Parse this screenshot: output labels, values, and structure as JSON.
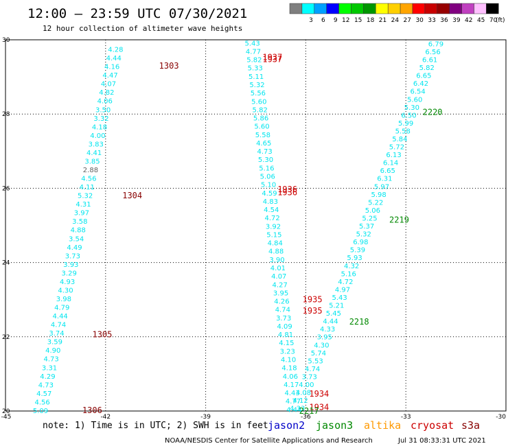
{
  "header": {
    "title": "12:00 – 23:59 UTC 07/30/2021",
    "subtitle": "12 hour collection of altimeter wave heights"
  },
  "color_scale": {
    "unit": "(ft)",
    "boxes": [
      {
        "label": "",
        "color": "#7f7f7f"
      },
      {
        "label": "3",
        "color": "#00ffff"
      },
      {
        "label": "6",
        "color": "#00a0ff"
      },
      {
        "label": "9",
        "color": "#0000ff"
      },
      {
        "label": "12",
        "color": "#00ff00"
      },
      {
        "label": "15",
        "color": "#00c800"
      },
      {
        "label": "18",
        "color": "#009600"
      },
      {
        "label": "21",
        "color": "#ffff00"
      },
      {
        "label": "24",
        "color": "#ffd000"
      },
      {
        "label": "27",
        "color": "#ffa500"
      },
      {
        "label": "30",
        "color": "#ff0000"
      },
      {
        "label": "33",
        "color": "#c80000"
      },
      {
        "label": "36",
        "color": "#960000"
      },
      {
        "label": "39",
        "color": "#800080"
      },
      {
        "label": "42",
        "color": "#c040c0"
      },
      {
        "label": "45",
        "color": "#ffc0ff"
      },
      {
        "label": "70",
        "color": "#000000"
      }
    ]
  },
  "chart_data": {
    "type": "scatter",
    "xlim": [
      -45,
      -30
    ],
    "ylim": [
      20,
      30
    ],
    "x_ticks": [
      "-45",
      "-42",
      "-39",
      "-36",
      "-33",
      "-30"
    ],
    "y_ticks": [
      "20",
      "22",
      "24",
      "26",
      "28",
      "30"
    ],
    "grid": true,
    "colors": {
      "swh": "#00e5ee",
      "swh_dark": "#606060",
      "jason2": "#0000c8",
      "jason3": "#008800",
      "altika": "#ff9900",
      "cryosat": "#cc0000",
      "s3a": "#880000"
    },
    "tracks": [
      {
        "name": "s3a",
        "start": [
          -43.95,
          20.02
        ],
        "end": [
          -41.7,
          29.75
        ],
        "values": [
          "5.09",
          "4.56",
          "4.57",
          "4.73",
          "4.29",
          "3.31",
          "4.73",
          "4.90",
          "3.59",
          "3.74",
          "4.74",
          "4.44",
          "4.79",
          "3.98",
          "4.30",
          "4.93",
          "3.29",
          "3.93",
          "3.73",
          "4.49",
          "3.54",
          "4.88",
          "3.58",
          "3.97",
          "4.31",
          "5.32",
          "4.11",
          "4.56",
          "2.88",
          "3.85",
          "4.41",
          "3.83",
          "4.00",
          "4.18",
          "3.32",
          "3.50",
          "4.06",
          "4.82",
          "4.07",
          "4.47",
          "4.16",
          "4.44",
          "4.28"
        ],
        "dark": [
          28
        ]
      },
      {
        "name": "cryosat",
        "start": [
          -36.35,
          20.05
        ],
        "end": [
          -37.6,
          29.92
        ],
        "values": [
          "4.44",
          "4.77",
          "4.43",
          "4.17",
          "4.06",
          "4.18",
          "4.10",
          "3.23",
          "4.15",
          "4.81",
          "4.09",
          "3.73",
          "4.74",
          "4.26",
          "3.95",
          "4.27",
          "4.07",
          "4.01",
          "3.90",
          "4.88",
          "4.84",
          "5.15",
          "3.92",
          "4.72",
          "4.54",
          "4.83",
          "4.59",
          "5.10",
          "5.06",
          "5.16",
          "5.30",
          "4.73",
          "4.65",
          "5.58",
          "5.60",
          "5.86",
          "5.82",
          "5.60",
          "5.56",
          "5.32",
          "5.11",
          "5.33",
          "5.82",
          "4.77",
          "5.43"
        ]
      },
      {
        "name": "jason3",
        "start": [
          -36.25,
          20.08
        ],
        "end": [
          -32.1,
          29.9
        ],
        "values": [
          "4.33",
          "4.12",
          "4.08",
          "4.00",
          "3.73",
          "4.74",
          "5.53",
          "5.74",
          "4.30",
          "3.95",
          "4.33",
          "4.44",
          "5.45",
          "5.21",
          "5.43",
          "4.97",
          "4.72",
          "5.16",
          "4.32",
          "5.93",
          "5.39",
          "6.98",
          "5.32",
          "5.37",
          "5.25",
          "5.06",
          "5.22",
          "5.98",
          "5.97",
          "6.31",
          "6.65",
          "6.14",
          "6.13",
          "5.72",
          "5.84",
          "5.58",
          "5.99",
          "6.50",
          "5.30",
          "5.60",
          "6.54",
          "6.42",
          "6.65",
          "5.82",
          "6.61",
          "6.56",
          "6.79"
        ]
      }
    ],
    "time_labels": [
      {
        "text": "1303",
        "x": -40.1,
        "y": 29.3,
        "sat": "s3a"
      },
      {
        "text": "1304",
        "x": -41.2,
        "y": 25.8,
        "sat": "s3a"
      },
      {
        "text": "1305",
        "x": -42.1,
        "y": 22.06,
        "sat": "s3a"
      },
      {
        "text": "1306",
        "x": -42.4,
        "y": 20.02,
        "sat": "s3a"
      },
      {
        "text": "1937",
        "x": -37.0,
        "y": 29.53,
        "sat": "cryosat"
      },
      {
        "text": "1937",
        "x": -37.0,
        "y": 29.47,
        "sat": "cryosat"
      },
      {
        "text": "1936",
        "x": -36.55,
        "y": 25.97,
        "sat": "cryosat"
      },
      {
        "text": "1936",
        "x": -36.55,
        "y": 25.89,
        "sat": "cryosat"
      },
      {
        "text": "1935",
        "x": -35.8,
        "y": 23.0,
        "sat": "cryosat"
      },
      {
        "text": "1935",
        "x": -35.8,
        "y": 22.7,
        "sat": "cryosat"
      },
      {
        "text": "1934",
        "x": -35.6,
        "y": 20.46,
        "sat": "cryosat"
      },
      {
        "text": "1934",
        "x": -35.6,
        "y": 20.1,
        "sat": "cryosat"
      },
      {
        "text": "2220",
        "x": -32.2,
        "y": 28.05,
        "sat": "jason3"
      },
      {
        "text": "2219",
        "x": -33.2,
        "y": 25.15,
        "sat": "jason3"
      },
      {
        "text": "2218",
        "x": -34.4,
        "y": 22.4,
        "sat": "jason3"
      },
      {
        "text": "2217",
        "x": -35.9,
        "y": 20.0,
        "sat": "jason3"
      }
    ]
  },
  "footer": {
    "note": "note: 1) Time is in UTC; 2) SWH is in feet",
    "legend": [
      {
        "text": "jason2",
        "sat": "jason2"
      },
      {
        "text": "jason3",
        "sat": "jason3"
      },
      {
        "text": "altika",
        "sat": "altika"
      },
      {
        "text": "cryosat",
        "sat": "cryosat"
      },
      {
        "text": "s3a",
        "sat": "s3a"
      }
    ],
    "credit_left": "NOAA/NESDIS Center for Satellite Applications and Research",
    "credit_right": "Jul 31 08:33:31 UTC 2021"
  }
}
